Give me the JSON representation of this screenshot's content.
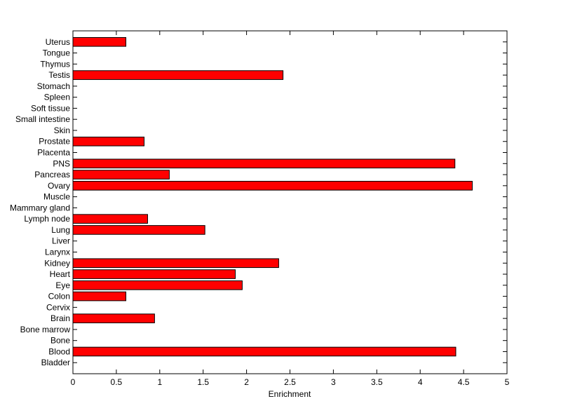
{
  "chart_data": {
    "type": "barh",
    "x_label": "Enrichment",
    "categories": [
      "Bladder",
      "Blood",
      "Bone",
      "Bone marrow",
      "Brain",
      "Cervix",
      "Colon",
      "Eye",
      "Heart",
      "Kidney",
      "Larynx",
      "Liver",
      "Lung",
      "Lymph node",
      "Mammary gland",
      "Muscle",
      "Ovary",
      "Pancreas",
      "PNS",
      "Placenta",
      "Prostate",
      "Skin",
      "Small intestine",
      "Soft tissue",
      "Spleen",
      "Stomach",
      "Testis",
      "Thymus",
      "Tongue",
      "Uterus"
    ],
    "values": [
      0,
      4.41,
      0,
      0,
      0.94,
      0,
      0.61,
      1.95,
      1.87,
      2.37,
      0,
      0,
      1.52,
      0.86,
      0,
      0,
      4.6,
      1.11,
      4.4,
      0,
      0.82,
      0,
      0,
      0,
      0,
      0,
      2.42,
      0,
      0,
      0.61
    ],
    "color": "#ff0000",
    "xlim": [
      0,
      5
    ],
    "xticks": [
      0,
      0.5,
      1,
      1.5,
      2,
      2.5,
      3,
      3.5,
      4,
      4.5,
      5
    ]
  }
}
